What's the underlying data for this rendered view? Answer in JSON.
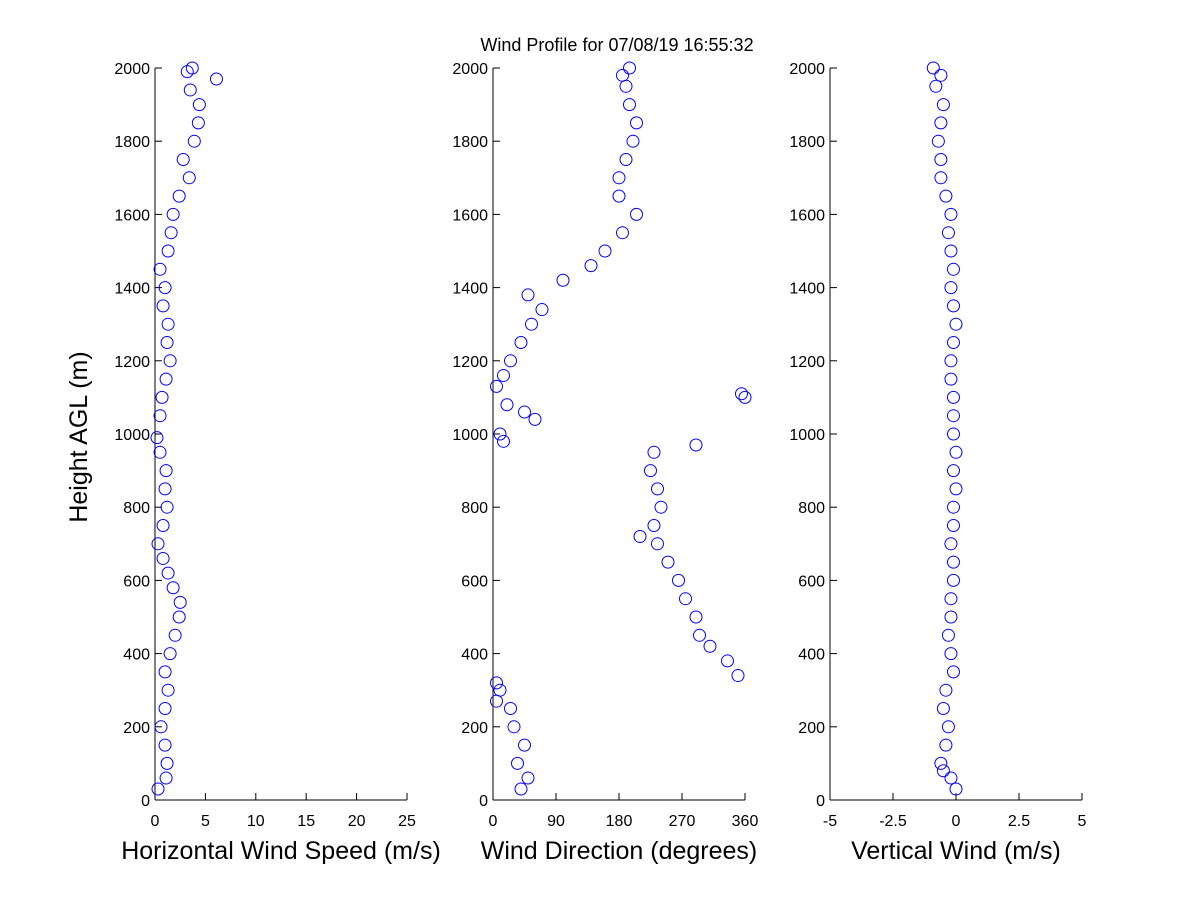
{
  "chart_data": {
    "title": "Wind Profile for  07/08/19 16:55:32",
    "ylabel": "Height AGL (m)",
    "marker": "open-circle",
    "marker_color": "#0000ff",
    "grid": false,
    "panels": [
      {
        "type": "scatter",
        "xlabel": "Horizontal Wind Speed (m/s)",
        "xlim": [
          0,
          25
        ],
        "ylim": [
          0,
          2000
        ],
        "xticks": [
          "0",
          "5",
          "10",
          "15",
          "20",
          "25"
        ],
        "xtick_values": [
          0,
          5,
          10,
          15,
          20,
          25
        ],
        "yticks": [
          "0",
          "200",
          "400",
          "600",
          "800",
          "1000",
          "1200",
          "1400",
          "1600",
          "1800",
          "2000"
        ],
        "y": [
          30,
          60,
          100,
          150,
          200,
          250,
          300,
          350,
          400,
          450,
          500,
          540,
          580,
          620,
          660,
          700,
          750,
          800,
          850,
          900,
          950,
          990,
          1050,
          1100,
          1150,
          1200,
          1250,
          1300,
          1350,
          1400,
          1450,
          1500,
          1550,
          1600,
          1650,
          1700,
          1750,
          1800,
          1850,
          1900,
          1940,
          1970,
          1990,
          2000
        ],
        "values": [
          0.3,
          1.1,
          1.2,
          1.0,
          0.6,
          1.0,
          1.3,
          1.0,
          1.5,
          2.0,
          2.4,
          2.5,
          1.8,
          1.3,
          0.8,
          0.3,
          0.8,
          1.2,
          1.0,
          1.1,
          0.5,
          0.2,
          0.5,
          0.7,
          1.1,
          1.5,
          1.2,
          1.3,
          0.8,
          1.0,
          0.5,
          1.3,
          1.6,
          1.8,
          2.4,
          3.4,
          2.8,
          3.9,
          4.3,
          4.4,
          3.5,
          6.1,
          3.2,
          3.7
        ]
      },
      {
        "type": "scatter",
        "xlabel": "Wind Direction (degrees)",
        "xlim": [
          0,
          360
        ],
        "ylim": [
          0,
          2000
        ],
        "xticks": [
          "0",
          "90",
          "180",
          "270",
          "360"
        ],
        "xtick_values": [
          0,
          90,
          180,
          270,
          360
        ],
        "yticks": [
          "0",
          "200",
          "400",
          "600",
          "800",
          "1000",
          "1200",
          "1400",
          "1600",
          "1800",
          "2000"
        ],
        "y": [
          30,
          60,
          100,
          150,
          200,
          250,
          270,
          300,
          320,
          340,
          380,
          420,
          450,
          500,
          550,
          600,
          650,
          700,
          720,
          750,
          800,
          850,
          900,
          950,
          970,
          980,
          1000,
          1040,
          1060,
          1080,
          1100,
          1110,
          1130,
          1160,
          1200,
          1250,
          1300,
          1340,
          1380,
          1420,
          1460,
          1500,
          1550,
          1600,
          1650,
          1700,
          1750,
          1800,
          1850,
          1900,
          1950,
          1980,
          2000
        ],
        "values": [
          40,
          50,
          35,
          45,
          30,
          25,
          5,
          10,
          5,
          350,
          335,
          310,
          295,
          290,
          275,
          265,
          250,
          235,
          210,
          230,
          240,
          235,
          225,
          230,
          290,
          15,
          10,
          60,
          45,
          20,
          360,
          355,
          5,
          15,
          25,
          40,
          55,
          70,
          50,
          100,
          140,
          160,
          185,
          205,
          180,
          180,
          190,
          200,
          205,
          195,
          190,
          185,
          195
        ]
      },
      {
        "type": "scatter",
        "xlabel": "Vertical Wind (m/s)",
        "xlim": [
          -5,
          5
        ],
        "ylim": [
          0,
          2000
        ],
        "xticks": [
          "-5",
          "-2.5",
          "0",
          "2.5",
          "5"
        ],
        "xtick_values": [
          -5,
          -2.5,
          0,
          2.5,
          5
        ],
        "yticks": [
          "0",
          "200",
          "400",
          "600",
          "800",
          "1000",
          "1200",
          "1400",
          "1600",
          "1800",
          "2000"
        ],
        "y": [
          30,
          60,
          80,
          100,
          150,
          200,
          250,
          300,
          350,
          400,
          450,
          500,
          550,
          600,
          650,
          700,
          750,
          800,
          850,
          900,
          950,
          1000,
          1050,
          1100,
          1150,
          1200,
          1250,
          1300,
          1350,
          1400,
          1450,
          1500,
          1550,
          1600,
          1650,
          1700,
          1750,
          1800,
          1850,
          1900,
          1950,
          1980,
          2000
        ],
        "values": [
          0.0,
          -0.2,
          -0.5,
          -0.6,
          -0.4,
          -0.3,
          -0.5,
          -0.4,
          -0.1,
          -0.2,
          -0.3,
          -0.2,
          -0.2,
          -0.1,
          -0.1,
          -0.2,
          -0.1,
          -0.1,
          0.0,
          -0.1,
          0.0,
          -0.1,
          -0.1,
          -0.1,
          -0.2,
          -0.2,
          -0.1,
          0.0,
          -0.1,
          -0.2,
          -0.1,
          -0.2,
          -0.3,
          -0.2,
          -0.4,
          -0.6,
          -0.6,
          -0.7,
          -0.6,
          -0.5,
          -0.8,
          -0.6,
          -0.9
        ]
      }
    ]
  }
}
